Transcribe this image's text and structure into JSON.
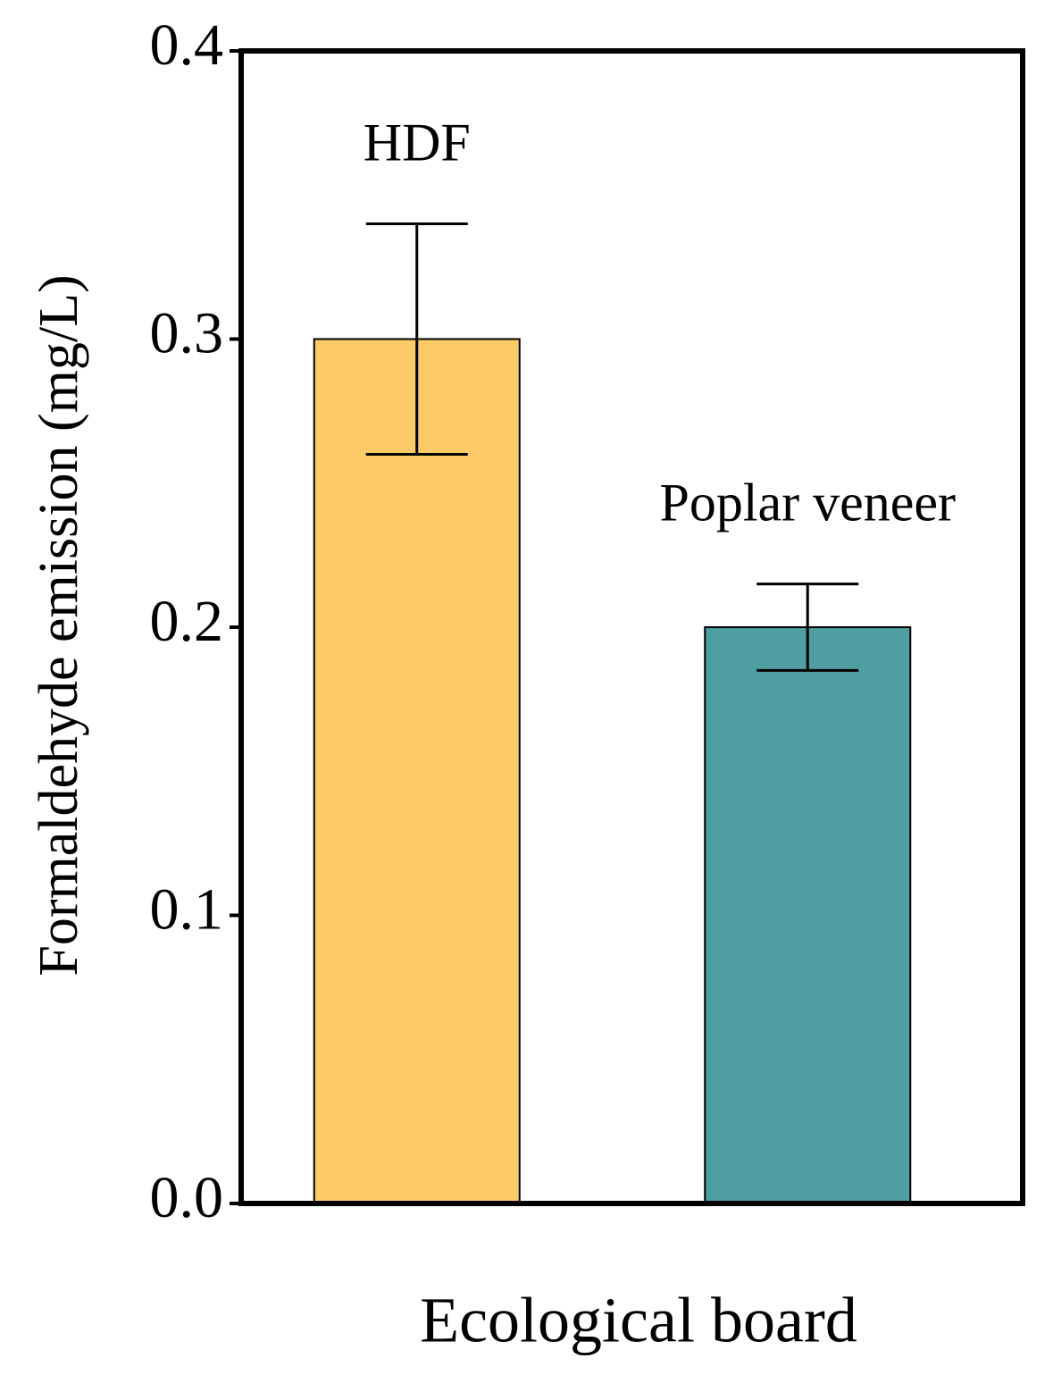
{
  "chart_data": {
    "type": "bar",
    "x_label": "Ecological board",
    "y_label": "Formaldehyde emission (mg/L)",
    "categories": [
      "HDF",
      "Poplar veneer"
    ],
    "values": [
      0.3,
      0.2
    ],
    "errors": [
      0.04,
      0.015
    ],
    "colors": [
      "#fcca66",
      "#4e9ea2"
    ],
    "ylim": [
      0,
      0.4
    ],
    "yticks": [
      {
        "value": 0,
        "label": "0.0"
      },
      0.1,
      0.2,
      0.3,
      0.4
    ],
    "grid": false
  }
}
